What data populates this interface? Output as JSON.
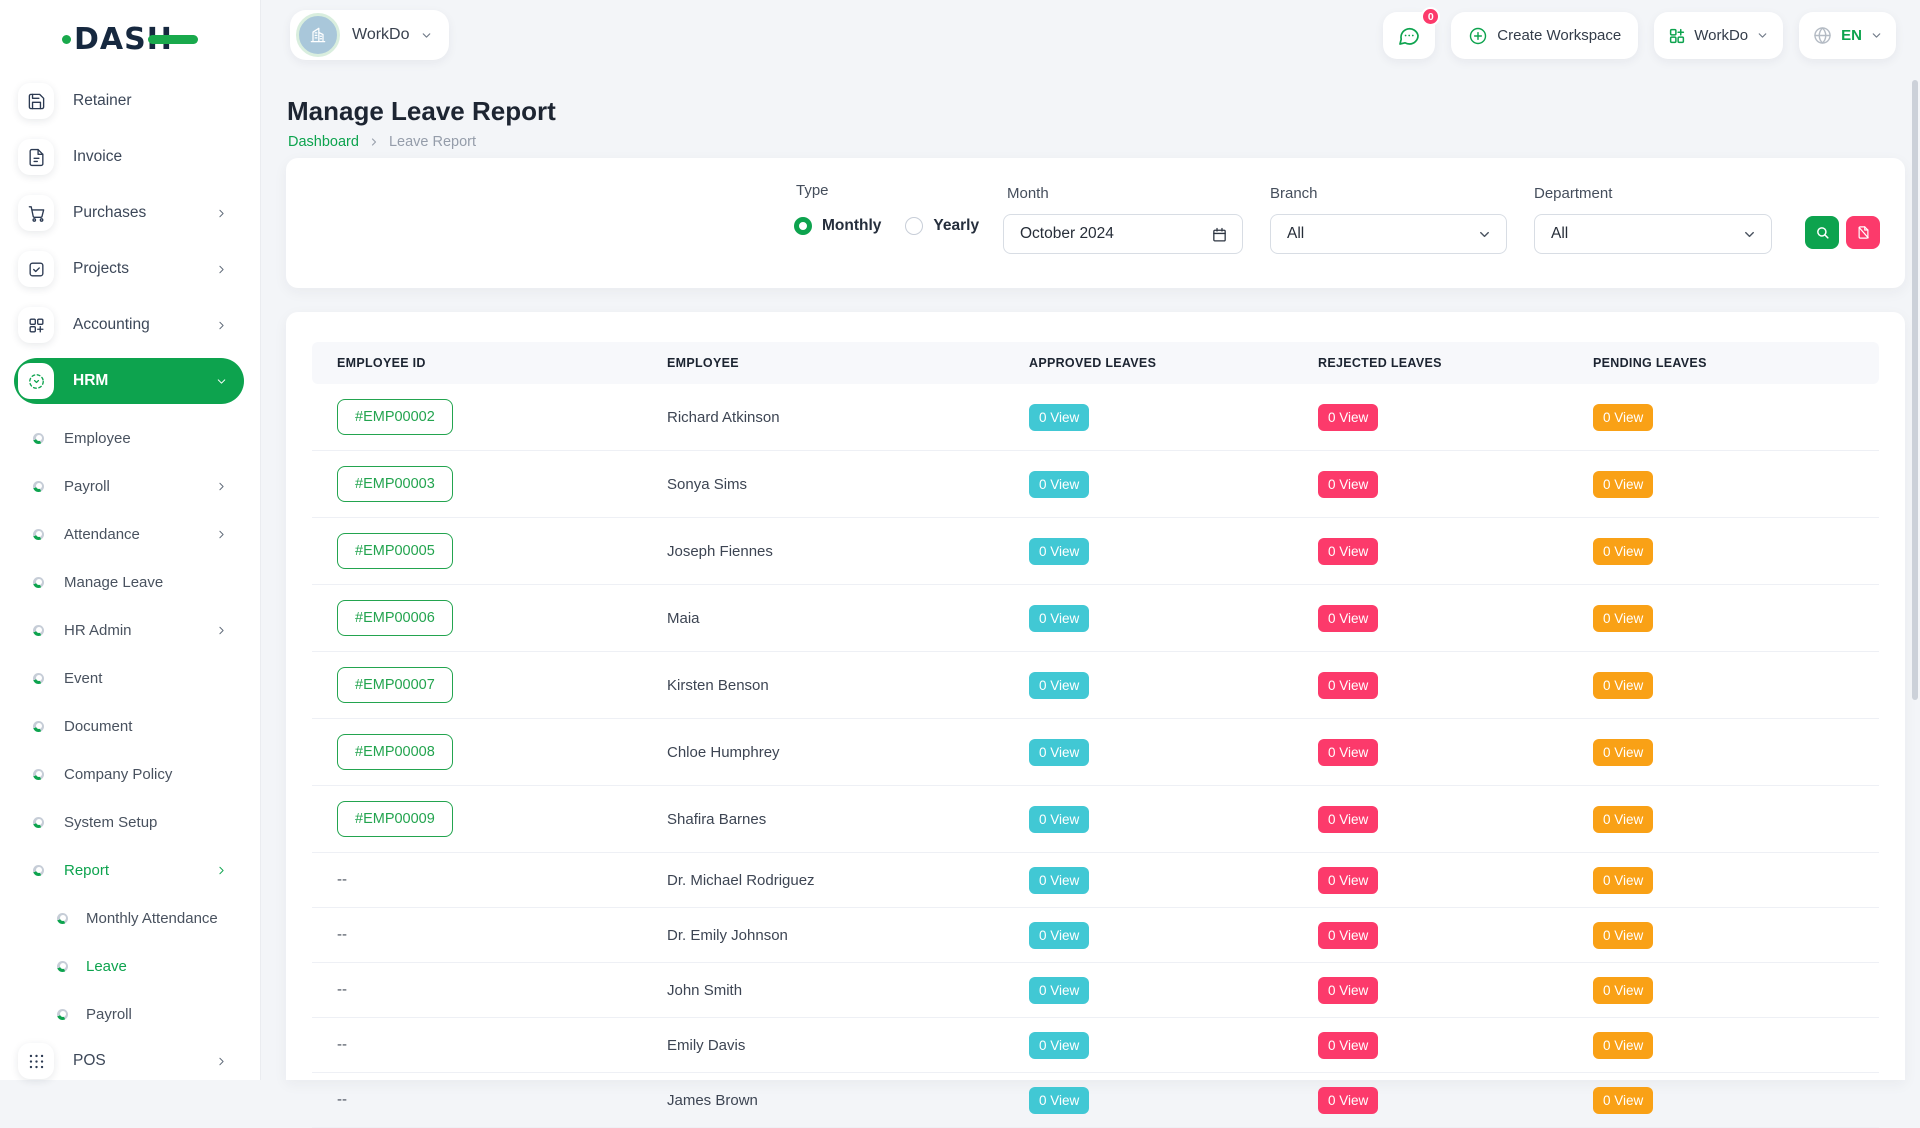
{
  "theme": {
    "accent_green": "#0DA34E",
    "link_green": "#23A44F",
    "badge_teal": "#41C8D4",
    "badge_pink": "#FC3A6B",
    "badge_orange": "#F9A116"
  },
  "topbar": {
    "logo_text": "DASH",
    "workspace_selector_label": "WorkDo",
    "chat_badge": "0",
    "create_workspace_label": "Create Workspace",
    "workspace_menu_label": "WorkDo",
    "language_label": "EN"
  },
  "sidebar": {
    "items": [
      {
        "type": "main",
        "label": "Retainer",
        "icon": "retainer"
      },
      {
        "type": "main",
        "label": "Invoice",
        "icon": "invoice"
      },
      {
        "type": "main",
        "label": "Purchases",
        "icon": "purchases",
        "chevron": "right"
      },
      {
        "type": "main",
        "label": "Projects",
        "icon": "projects",
        "chevron": "right"
      },
      {
        "type": "main",
        "label": "Accounting",
        "icon": "accounting",
        "chevron": "right"
      },
      {
        "type": "main",
        "label": "HRM",
        "icon": "hrm",
        "chevron": "down",
        "active": true
      },
      {
        "type": "sub",
        "label": "Employee"
      },
      {
        "type": "sub",
        "label": "Payroll",
        "chevron": "right"
      },
      {
        "type": "sub",
        "label": "Attendance",
        "chevron": "right"
      },
      {
        "type": "sub",
        "label": "Manage Leave"
      },
      {
        "type": "sub",
        "label": "HR Admin",
        "chevron": "right"
      },
      {
        "type": "sub",
        "label": "Event"
      },
      {
        "type": "sub",
        "label": "Document"
      },
      {
        "type": "sub",
        "label": "Company Policy"
      },
      {
        "type": "sub",
        "label": "System Setup"
      },
      {
        "type": "sub",
        "label": "Report",
        "chevron": "right",
        "active": true
      },
      {
        "type": "subsub",
        "label": "Monthly Attendance"
      },
      {
        "type": "subsub",
        "label": "Leave",
        "active": true
      },
      {
        "type": "subsub",
        "label": "Payroll"
      },
      {
        "type": "main",
        "label": "POS",
        "icon": "pos",
        "chevron": "right"
      }
    ]
  },
  "page": {
    "title": "Manage Leave Report",
    "breadcrumb_link": "Dashboard",
    "breadcrumb_current": "Leave Report"
  },
  "filters": {
    "type_label": "Type",
    "type_options": [
      {
        "label": "Monthly",
        "selected": true
      },
      {
        "label": "Yearly",
        "selected": false
      }
    ],
    "month_label": "Month",
    "month_value": "October 2024",
    "branch_label": "Branch",
    "branch_value": "All",
    "department_label": "Department",
    "department_value": "All"
  },
  "table": {
    "columns": [
      "EMPLOYEE ID",
      "EMPLOYEE",
      "APPROVED LEAVES",
      "REJECTED LEAVES",
      "PENDING LEAVES"
    ],
    "rows": [
      {
        "employee_id": "#EMP00002",
        "employee": "Richard Atkinson",
        "approved": "0 View",
        "rejected": "0 View",
        "pending": "0 View"
      },
      {
        "employee_id": "#EMP00003",
        "employee": "Sonya Sims",
        "approved": "0 View",
        "rejected": "0 View",
        "pending": "0 View"
      },
      {
        "employee_id": "#EMP00005",
        "employee": "Joseph Fiennes",
        "approved": "0 View",
        "rejected": "0 View",
        "pending": "0 View"
      },
      {
        "employee_id": "#EMP00006",
        "employee": "Maia",
        "approved": "0 View",
        "rejected": "0 View",
        "pending": "0 View"
      },
      {
        "employee_id": "#EMP00007",
        "employee": "Kirsten Benson",
        "approved": "0 View",
        "rejected": "0 View",
        "pending": "0 View"
      },
      {
        "employee_id": "#EMP00008",
        "employee": "Chloe Humphrey",
        "approved": "0 View",
        "rejected": "0 View",
        "pending": "0 View"
      },
      {
        "employee_id": "#EMP00009",
        "employee": "Shafira Barnes",
        "approved": "0 View",
        "rejected": "0 View",
        "pending": "0 View"
      },
      {
        "employee_id": "--",
        "employee": "Dr. Michael Rodriguez",
        "approved": "0 View",
        "rejected": "0 View",
        "pending": "0 View"
      },
      {
        "employee_id": "--",
        "employee": "Dr. Emily Johnson",
        "approved": "0 View",
        "rejected": "0 View",
        "pending": "0 View"
      },
      {
        "employee_id": "--",
        "employee": "John Smith",
        "approved": "0 View",
        "rejected": "0 View",
        "pending": "0 View"
      },
      {
        "employee_id": "--",
        "employee": "Emily Davis",
        "approved": "0 View",
        "rejected": "0 View",
        "pending": "0 View"
      },
      {
        "employee_id": "--",
        "employee": "James Brown",
        "approved": "0 View",
        "rejected": "0 View",
        "pending": "0 View"
      }
    ]
  }
}
